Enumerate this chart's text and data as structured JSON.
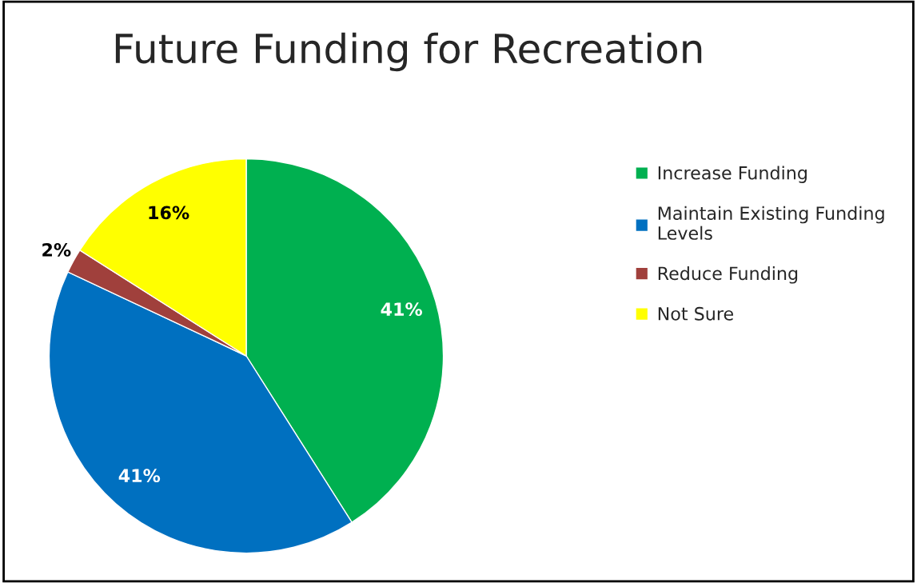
{
  "chart_data": {
    "type": "pie",
    "title": "Future Funding for Recreation",
    "categories": [
      "Increase Funding",
      "Maintain Existing Funding Levels",
      "Reduce Funding",
      "Not Sure"
    ],
    "values": [
      41,
      41,
      2,
      16
    ],
    "colors": [
      "#00b050",
      "#0070c0",
      "#a0403c",
      "#ffff00"
    ],
    "value_labels": [
      "41%",
      "41%",
      "2%",
      "16%"
    ],
    "legend": "right"
  }
}
